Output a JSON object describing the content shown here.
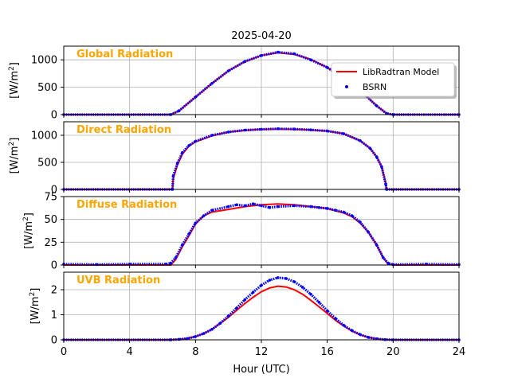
{
  "chart_data": {
    "type": "line",
    "title": "2025-04-20",
    "xlabel": "Hour (UTC)",
    "xlim": [
      0,
      24
    ],
    "xticks": [
      "0",
      "4",
      "8",
      "12",
      "16",
      "20",
      "24"
    ],
    "grid": true,
    "colors": {
      "model": "#ff0000",
      "obs": "#0000ff",
      "panel_title": "#ffa500"
    },
    "legend": {
      "placement": "top-right of first panel",
      "entries": [
        {
          "name": "LibRadtran Model",
          "style": "line",
          "color": "#ff0000"
        },
        {
          "name": "BSRN",
          "style": "marker",
          "color": "#0000ff"
        }
      ]
    },
    "panels": [
      {
        "title": "Global Radiation",
        "ylabel": "[W/m²]",
        "ylim": [
          0,
          1250
        ],
        "yticks": [
          "0",
          "500",
          "1000"
        ],
        "ytick_values": [
          0,
          500,
          1000
        ],
        "model": [
          [
            0,
            0
          ],
          [
            6.5,
            0
          ],
          [
            7,
            70
          ],
          [
            8,
            320
          ],
          [
            9,
            570
          ],
          [
            10,
            800
          ],
          [
            11,
            970
          ],
          [
            12,
            1080
          ],
          [
            13,
            1130
          ],
          [
            14,
            1100
          ],
          [
            15,
            1010
          ],
          [
            16,
            860
          ],
          [
            17,
            660
          ],
          [
            18,
            440
          ],
          [
            19,
            160
          ],
          [
            19.6,
            20
          ],
          [
            20,
            0
          ],
          [
            24,
            0
          ]
        ],
        "obs": [
          [
            0,
            0
          ],
          [
            6.5,
            0
          ],
          [
            7,
            70
          ],
          [
            8,
            320
          ],
          [
            9,
            570
          ],
          [
            10,
            800
          ],
          [
            11,
            970
          ],
          [
            12,
            1080
          ],
          [
            13,
            1140
          ],
          [
            14,
            1110
          ],
          [
            15,
            1000
          ],
          [
            16,
            860
          ],
          [
            17,
            660
          ],
          [
            18,
            440
          ],
          [
            19,
            160
          ],
          [
            19.6,
            20
          ],
          [
            20,
            0
          ],
          [
            24,
            0
          ]
        ]
      },
      {
        "title": "Direct Radiation",
        "ylabel": "[W/m²]",
        "ylim": [
          0,
          1250
        ],
        "yticks": [
          "0",
          "500",
          "1000"
        ],
        "ytick_values": [
          0,
          500,
          1000
        ],
        "model": [
          [
            0,
            0
          ],
          [
            6.6,
            0
          ],
          [
            6.65,
            200
          ],
          [
            6.9,
            450
          ],
          [
            7.2,
            650
          ],
          [
            7.6,
            800
          ],
          [
            8,
            880
          ],
          [
            9,
            990
          ],
          [
            10,
            1060
          ],
          [
            11,
            1090
          ],
          [
            12,
            1110
          ],
          [
            13,
            1115
          ],
          [
            14,
            1110
          ],
          [
            15,
            1100
          ],
          [
            16,
            1080
          ],
          [
            17,
            1030
          ],
          [
            18,
            900
          ],
          [
            18.6,
            760
          ],
          [
            19,
            600
          ],
          [
            19.3,
            420
          ],
          [
            19.55,
            120
          ],
          [
            19.6,
            0
          ],
          [
            24,
            0
          ]
        ],
        "obs": [
          [
            0,
            0
          ],
          [
            6.6,
            0
          ],
          [
            6.65,
            250
          ],
          [
            6.9,
            480
          ],
          [
            7.2,
            680
          ],
          [
            7.6,
            810
          ],
          [
            8,
            890
          ],
          [
            9,
            1000
          ],
          [
            10,
            1060
          ],
          [
            11,
            1095
          ],
          [
            12,
            1110
          ],
          [
            13,
            1120
          ],
          [
            14,
            1115
          ],
          [
            15,
            1100
          ],
          [
            16,
            1080
          ],
          [
            17,
            1030
          ],
          [
            18,
            900
          ],
          [
            18.6,
            760
          ],
          [
            19,
            600
          ],
          [
            19.3,
            420
          ],
          [
            19.55,
            100
          ],
          [
            19.6,
            0
          ],
          [
            24,
            0
          ]
        ]
      },
      {
        "title": "Diffuse Radiation",
        "ylabel": "[W/m²]",
        "ylim": [
          0,
          75
        ],
        "yticks": [
          "0",
          "25",
          "50",
          "75"
        ],
        "ytick_values": [
          0,
          25,
          50,
          75
        ],
        "model": [
          [
            0,
            0
          ],
          [
            6.5,
            0
          ],
          [
            6.8,
            6
          ],
          [
            7.2,
            20
          ],
          [
            7.6,
            32
          ],
          [
            8,
            45
          ],
          [
            8.5,
            54
          ],
          [
            9,
            58
          ],
          [
            10,
            61
          ],
          [
            11,
            64
          ],
          [
            12,
            66
          ],
          [
            13,
            67
          ],
          [
            14,
            66
          ],
          [
            15,
            64
          ],
          [
            16,
            62
          ],
          [
            17,
            57
          ],
          [
            17.5,
            53
          ],
          [
            18,
            46
          ],
          [
            18.5,
            36
          ],
          [
            19,
            22
          ],
          [
            19.4,
            8
          ],
          [
            19.7,
            1
          ],
          [
            20,
            0
          ],
          [
            24,
            0
          ]
        ],
        "obs": [
          [
            0,
            1
          ],
          [
            2,
            0.5
          ],
          [
            4,
            1
          ],
          [
            6.2,
            1
          ],
          [
            6.5,
            2
          ],
          [
            6.8,
            8
          ],
          [
            7.2,
            22
          ],
          [
            7.6,
            34
          ],
          [
            8,
            46
          ],
          [
            8.5,
            54
          ],
          [
            9,
            60
          ],
          [
            10,
            64
          ],
          [
            10.5,
            66
          ],
          [
            11,
            65
          ],
          [
            11.5,
            67
          ],
          [
            12,
            65
          ],
          [
            12.5,
            63
          ],
          [
            13,
            64
          ],
          [
            14,
            65
          ],
          [
            15,
            64
          ],
          [
            15.5,
            63
          ],
          [
            16,
            62
          ],
          [
            16.5,
            60
          ],
          [
            17,
            58
          ],
          [
            17.5,
            54
          ],
          [
            18,
            47
          ],
          [
            18.5,
            36
          ],
          [
            19,
            22
          ],
          [
            19.4,
            8
          ],
          [
            19.7,
            2
          ],
          [
            20,
            0.5
          ],
          [
            22,
            1
          ],
          [
            24,
            0.5
          ]
        ]
      },
      {
        "title": "UVB Radiation",
        "ylabel": "[W/m²]",
        "ylim": [
          0,
          2.7
        ],
        "yticks": [
          "0",
          "1",
          "2"
        ],
        "ytick_values": [
          0,
          1,
          2
        ],
        "model": [
          [
            0,
            0
          ],
          [
            6.5,
            0
          ],
          [
            7,
            0.02
          ],
          [
            7.5,
            0.05
          ],
          [
            8,
            0.13
          ],
          [
            8.5,
            0.25
          ],
          [
            9,
            0.42
          ],
          [
            9.5,
            0.65
          ],
          [
            10,
            0.9
          ],
          [
            10.5,
            1.18
          ],
          [
            11,
            1.45
          ],
          [
            11.5,
            1.7
          ],
          [
            12,
            1.92
          ],
          [
            12.5,
            2.07
          ],
          [
            13,
            2.14
          ],
          [
            13.5,
            2.11
          ],
          [
            14,
            2.0
          ],
          [
            14.5,
            1.82
          ],
          [
            15,
            1.58
          ],
          [
            15.5,
            1.32
          ],
          [
            16,
            1.05
          ],
          [
            16.5,
            0.78
          ],
          [
            17,
            0.55
          ],
          [
            17.5,
            0.35
          ],
          [
            18,
            0.2
          ],
          [
            18.5,
            0.1
          ],
          [
            19,
            0.04
          ],
          [
            19.5,
            0.01
          ],
          [
            20,
            0
          ],
          [
            24,
            0
          ]
        ],
        "obs": [
          [
            0,
            0
          ],
          [
            6.5,
            0
          ],
          [
            7,
            0.02
          ],
          [
            7.5,
            0.05
          ],
          [
            8,
            0.13
          ],
          [
            8.5,
            0.25
          ],
          [
            9,
            0.42
          ],
          [
            9.5,
            0.66
          ],
          [
            10,
            0.95
          ],
          [
            10.5,
            1.27
          ],
          [
            11,
            1.6
          ],
          [
            11.5,
            1.9
          ],
          [
            12,
            2.18
          ],
          [
            12.5,
            2.38
          ],
          [
            13,
            2.48
          ],
          [
            13.5,
            2.45
          ],
          [
            14,
            2.32
          ],
          [
            14.5,
            2.1
          ],
          [
            15,
            1.82
          ],
          [
            15.5,
            1.5
          ],
          [
            16,
            1.16
          ],
          [
            16.5,
            0.85
          ],
          [
            17,
            0.58
          ],
          [
            17.5,
            0.37
          ],
          [
            18,
            0.21
          ],
          [
            18.5,
            0.1
          ],
          [
            19,
            0.04
          ],
          [
            19.5,
            0.01
          ],
          [
            20,
            0
          ],
          [
            24,
            0
          ]
        ]
      }
    ]
  }
}
